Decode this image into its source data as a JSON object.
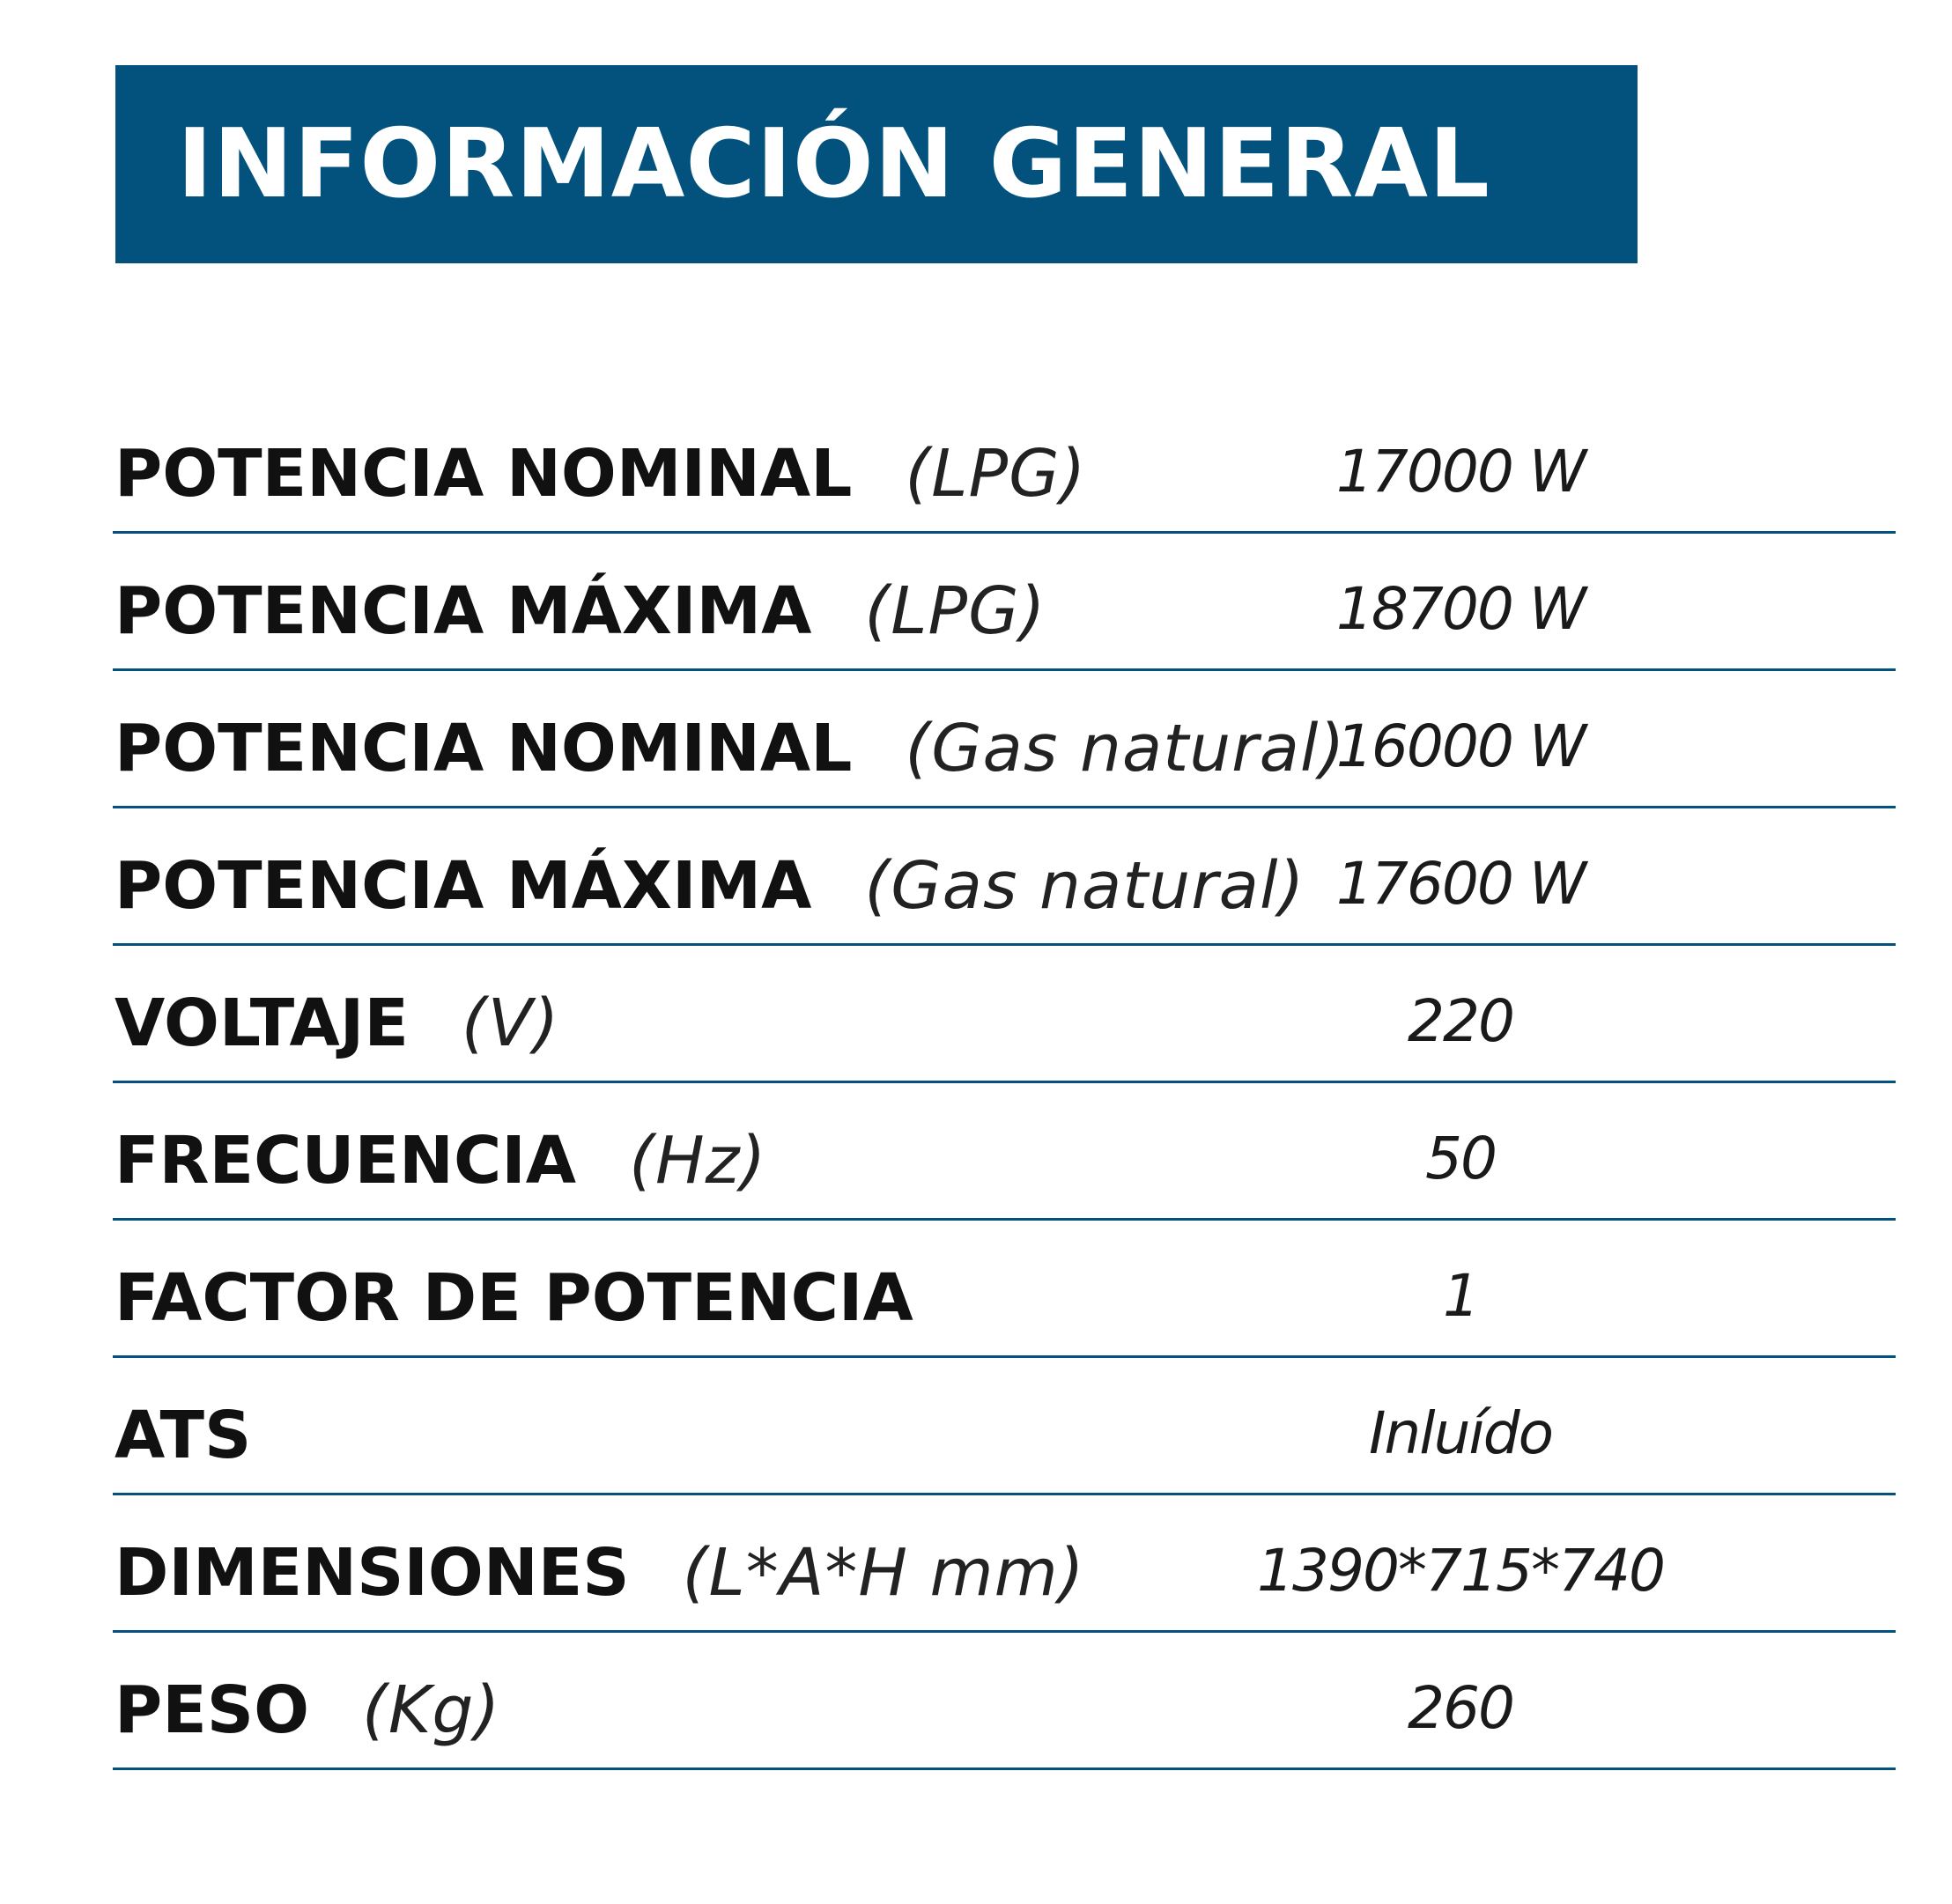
{
  "header": {
    "title": "INFORMACIÓN GENERAL",
    "background_color": "#03527d",
    "text_color": "#ffffff"
  },
  "divider_color": "#03527d",
  "specs": [
    {
      "name": "POTENCIA NOMINAL",
      "unit": "(LPG)",
      "value": "17000 W"
    },
    {
      "name": "POTENCIA MÁXIMA",
      "unit": "(LPG)",
      "value": "18700 W"
    },
    {
      "name": "POTENCIA NOMINAL",
      "unit": "(Gas natural)",
      "value": "16000 W"
    },
    {
      "name": "POTENCIA MÁXIMA",
      "unit": "(Gas natural)",
      "value": "17600 W"
    },
    {
      "name": "VOLTAJE",
      "unit": "(V)",
      "value": "220"
    },
    {
      "name": "FRECUENCIA",
      "unit": "(Hz)",
      "value": "50"
    },
    {
      "name": "FACTOR DE POTENCIA",
      "unit": "",
      "value": "1"
    },
    {
      "name": "ATS",
      "unit": "",
      "value": "Inluído"
    },
    {
      "name": "DIMENSIONES",
      "unit": "(L*A*H mm)",
      "value": "1390*715*740"
    },
    {
      "name": "PESO",
      "unit": "(Kg)",
      "value": "260"
    }
  ]
}
